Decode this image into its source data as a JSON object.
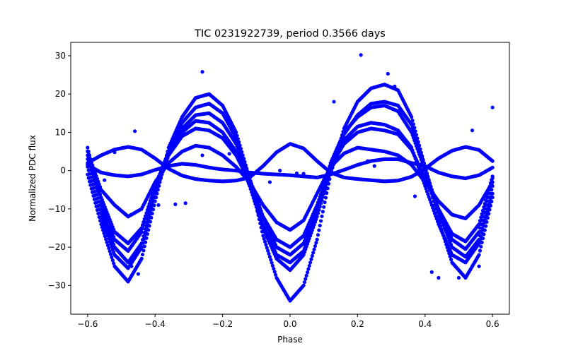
{
  "chart_data": {
    "type": "scatter",
    "title": "TIC 0231922739, period 0.3566 days",
    "xlabel": "Phase",
    "ylabel": "Normalized PDC flux",
    "xlim": [
      -0.65,
      0.65
    ],
    "ylim": [
      -37.5,
      33.5
    ],
    "x_ticks": [
      -0.6,
      -0.4,
      -0.2,
      0.0,
      0.2,
      0.4,
      0.6
    ],
    "x_tick_labels": [
      "−0.6",
      "−0.4",
      "−0.2",
      "0.0",
      "0.2",
      "0.4",
      "0.6"
    ],
    "y_ticks": [
      -30,
      -20,
      -10,
      0,
      10,
      20,
      30
    ],
    "y_tick_labels": [
      "−30",
      "−20",
      "−10",
      "0",
      "10",
      "20",
      "30"
    ],
    "grid": false,
    "marker_color": "#0000ff",
    "series": [
      {
        "x": [
          -0.6,
          -0.56,
          -0.52,
          -0.48,
          -0.44,
          -0.4,
          -0.36,
          -0.32,
          -0.28,
          -0.24,
          -0.2,
          -0.16,
          -0.12,
          -0.08,
          -0.04,
          0.0,
          0.04,
          0.08,
          0.12,
          0.16,
          0.2,
          0.24,
          0.28,
          0.32,
          0.36,
          0.4,
          0.44,
          0.48,
          0.52,
          0.56,
          0.6
        ],
        "y": [
          2.0,
          4.0,
          5.5,
          6.2,
          5.5,
          3.2,
          0.5,
          -1.3,
          -2.2,
          -2.6,
          -2.8,
          -2.6,
          -1.8,
          1.2,
          4.8,
          7.0,
          5.8,
          2.5,
          -0.5,
          -1.8,
          -2.2,
          -2.5,
          -2.8,
          -2.6,
          -1.6,
          0.5,
          3.2,
          5.2,
          6.2,
          5.4,
          2.5
        ]
      },
      {
        "x": [
          -0.6,
          -0.56,
          -0.52,
          -0.48,
          -0.44,
          -0.4,
          -0.36,
          -0.32,
          -0.28,
          -0.24,
          -0.2,
          -0.16,
          -0.12,
          -0.08,
          -0.04,
          0.0,
          0.04,
          0.08,
          0.12,
          0.16,
          0.2,
          0.24,
          0.28,
          0.32,
          0.36,
          0.4,
          0.44,
          0.48,
          0.52,
          0.56,
          0.6
        ],
        "y": [
          1.5,
          -0.5,
          -1.2,
          -1.5,
          -1.0,
          0.2,
          1.2,
          1.8,
          1.5,
          0.8,
          0.3,
          0.0,
          -0.5,
          -0.8,
          -1.0,
          -1.2,
          -1.5,
          -1.8,
          -1.0,
          0.2,
          1.5,
          2.5,
          3.0,
          3.0,
          2.0,
          1.2,
          -0.5,
          -1.5,
          -2.0,
          -1.2,
          0.8
        ]
      },
      {
        "x": [
          -0.6,
          -0.56,
          -0.52,
          -0.48,
          -0.44,
          -0.4,
          -0.36,
          -0.32,
          -0.28,
          -0.24,
          -0.2,
          -0.16,
          -0.12,
          -0.08,
          -0.04,
          0.0,
          0.04,
          0.08,
          0.12,
          0.16,
          0.2,
          0.24,
          0.28,
          0.32,
          0.36,
          0.4,
          0.44,
          0.48,
          0.52,
          0.56,
          0.6
        ],
        "y": [
          5.0,
          -5.0,
          -9.0,
          -12.0,
          -10.0,
          -3.0,
          2.0,
          5.0,
          6.5,
          6.0,
          4.0,
          1.0,
          -3.0,
          -9.0,
          -13.5,
          -15.5,
          -13.0,
          -6.0,
          1.0,
          4.5,
          6.0,
          5.5,
          5.0,
          4.0,
          1.5,
          -3.0,
          -8.0,
          -11.5,
          -12.5,
          -9.0,
          -3.0
        ]
      },
      {
        "x": [
          -0.6,
          -0.56,
          -0.52,
          -0.48,
          -0.44,
          -0.4,
          -0.36,
          -0.32,
          -0.28,
          -0.24,
          -0.2,
          -0.16,
          -0.12,
          -0.08,
          -0.04,
          0.0,
          0.04,
          0.08,
          0.12,
          0.16,
          0.2,
          0.24,
          0.28,
          0.32,
          0.36,
          0.4,
          0.44,
          0.48,
          0.52,
          0.56,
          0.6
        ],
        "y": [
          6.0,
          -8.0,
          -18.0,
          -21.0,
          -16.0,
          -4.0,
          5.0,
          11.0,
          14.5,
          15.0,
          12.5,
          7.0,
          -2.0,
          -12.0,
          -20.0,
          -22.0,
          -19.0,
          -10.0,
          2.0,
          10.0,
          14.0,
          16.5,
          17.0,
          15.5,
          10.0,
          0.0,
          -10.0,
          -18.0,
          -20.5,
          -16.0,
          -2.0
        ]
      },
      {
        "x": [
          -0.6,
          -0.56,
          -0.52,
          -0.48,
          -0.44,
          -0.4,
          -0.36,
          -0.32,
          -0.28,
          -0.24,
          -0.2,
          -0.16,
          -0.12,
          -0.08,
          -0.04,
          0.0,
          0.04,
          0.08,
          0.12,
          0.16,
          0.2,
          0.24,
          0.28,
          0.32,
          0.36,
          0.4,
          0.44,
          0.48,
          0.52,
          0.56,
          0.6
        ],
        "y": [
          3.0,
          -10.0,
          -20.0,
          -24.0,
          -19.0,
          -6.0,
          4.0,
          10.0,
          13.0,
          12.5,
          10.0,
          5.0,
          -4.0,
          -15.0,
          -23.0,
          -26.0,
          -22.0,
          -12.0,
          0.0,
          8.0,
          11.5,
          12.5,
          12.0,
          10.5,
          6.0,
          -4.0,
          -14.0,
          -22.0,
          -24.0,
          -19.0,
          -6.0
        ]
      },
      {
        "x": [
          -0.6,
          -0.56,
          -0.52,
          -0.48,
          -0.44,
          -0.4,
          -0.36,
          -0.32,
          -0.28,
          -0.24,
          -0.2,
          -0.16,
          -0.12,
          -0.08,
          -0.04,
          0.0,
          0.04,
          0.08,
          0.12,
          0.16,
          0.2,
          0.24,
          0.28,
          0.32,
          0.36,
          0.4,
          0.44,
          0.48,
          0.52,
          0.56,
          0.6
        ],
        "y": [
          -1.0,
          -14.0,
          -25.0,
          -29.0,
          -23.0,
          -8.0,
          6.0,
          14.0,
          19.0,
          20.0,
          17.0,
          10.0,
          -2.0,
          -17.0,
          -28.0,
          -34.0,
          -30.0,
          -18.0,
          -1.0,
          11.0,
          18.0,
          21.5,
          22.5,
          21.0,
          14.0,
          1.0,
          -13.0,
          -24.0,
          -28.0,
          -22.0,
          -7.0
        ]
      },
      {
        "x": [
          -0.6,
          -0.56,
          -0.52,
          -0.48,
          -0.44,
          -0.4,
          -0.36,
          -0.32,
          -0.28,
          -0.24,
          -0.2,
          -0.16,
          -0.12,
          -0.08,
          -0.04,
          0.0,
          0.04,
          0.08,
          0.12,
          0.16,
          0.2,
          0.24,
          0.28,
          0.32,
          0.36,
          0.4,
          0.44,
          0.48,
          0.52,
          0.56,
          0.6
        ],
        "y": [
          1.0,
          -12.0,
          -22.0,
          -25.5,
          -20.0,
          -6.0,
          5.0,
          12.5,
          16.5,
          17.5,
          15.0,
          8.5,
          -2.0,
          -14.0,
          -22.0,
          -24.0,
          -21.0,
          -11.0,
          1.5,
          9.5,
          14.5,
          17.5,
          18.0,
          17.0,
          12.0,
          1.0,
          -11.0,
          -20.0,
          -22.5,
          -18.0,
          -4.0
        ]
      },
      {
        "x": [
          -0.6,
          -0.56,
          -0.52,
          -0.48,
          -0.44,
          -0.4,
          -0.36,
          -0.32,
          -0.28,
          -0.24,
          -0.2,
          -0.16,
          -0.12,
          -0.08,
          -0.04,
          0.0,
          0.04,
          0.08,
          0.12,
          0.16,
          0.2,
          0.24,
          0.28,
          0.32,
          0.36,
          0.4,
          0.44,
          0.48,
          0.52,
          0.56,
          0.6
        ],
        "y": [
          4.0,
          -7.0,
          -16.0,
          -19.0,
          -15.0,
          -4.0,
          4.0,
          9.0,
          11.0,
          10.5,
          8.5,
          4.0,
          -3.0,
          -12.0,
          -18.0,
          -20.0,
          -17.0,
          -9.0,
          1.0,
          7.0,
          10.0,
          11.0,
          10.5,
          9.5,
          5.5,
          -2.0,
          -10.0,
          -16.5,
          -18.5,
          -14.0,
          -1.5
        ]
      },
      {
        "x": [
          -0.46,
          -0.47,
          -0.52,
          -0.55,
          -0.45,
          -0.39,
          -0.34,
          -0.31,
          -0.26,
          -0.26,
          -0.18,
          -0.13,
          -0.06,
          -0.03,
          0.02,
          0.04,
          0.13,
          0.14,
          0.21,
          0.23,
          0.25,
          0.29,
          0.31,
          0.37,
          0.42,
          0.44,
          0.5,
          0.54,
          0.56,
          0.6
        ],
        "y": [
          10.3,
          -25.0,
          4.8,
          -2.5,
          -27.0,
          -9.0,
          -8.8,
          -8.5,
          25.8,
          4.0,
          4.4,
          -1.5,
          -3.0,
          0.0,
          -0.7,
          -0.8,
          18.0,
          3.5,
          30.2,
          2.5,
          1.2,
          25.3,
          22.0,
          -6.7,
          -26.5,
          -28.0,
          -28.0,
          10.5,
          -25.0,
          16.5
        ]
      }
    ]
  }
}
